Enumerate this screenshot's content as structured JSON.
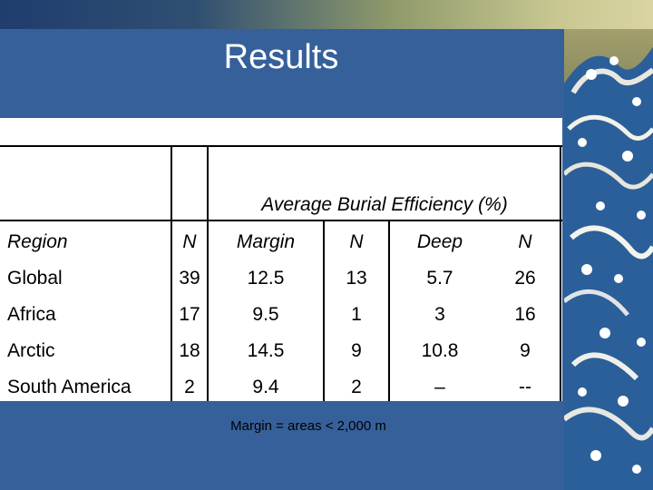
{
  "slide": {
    "title": "Results",
    "footnote": "Margin = areas < 2,000 m"
  },
  "table": {
    "group_header": "Average Burial Efficiency (%)",
    "columns": [
      "Region",
      "N",
      "Margin",
      "N",
      "Deep",
      "N"
    ],
    "rows": [
      [
        "Global",
        "39",
        "12.5",
        "13",
        "5.7",
        "26"
      ],
      [
        "Africa",
        "17",
        "9.5",
        "1",
        "3",
        "16"
      ],
      [
        "Arctic",
        "18",
        "14.5",
        "9",
        "10.8",
        "9"
      ],
      [
        "South America",
        "2",
        "9.4",
        "2",
        "–",
        "--"
      ]
    ]
  },
  "colors": {
    "slide_background": "#36609a",
    "table_background": "#ffffff",
    "title_text": "#ffffff"
  }
}
